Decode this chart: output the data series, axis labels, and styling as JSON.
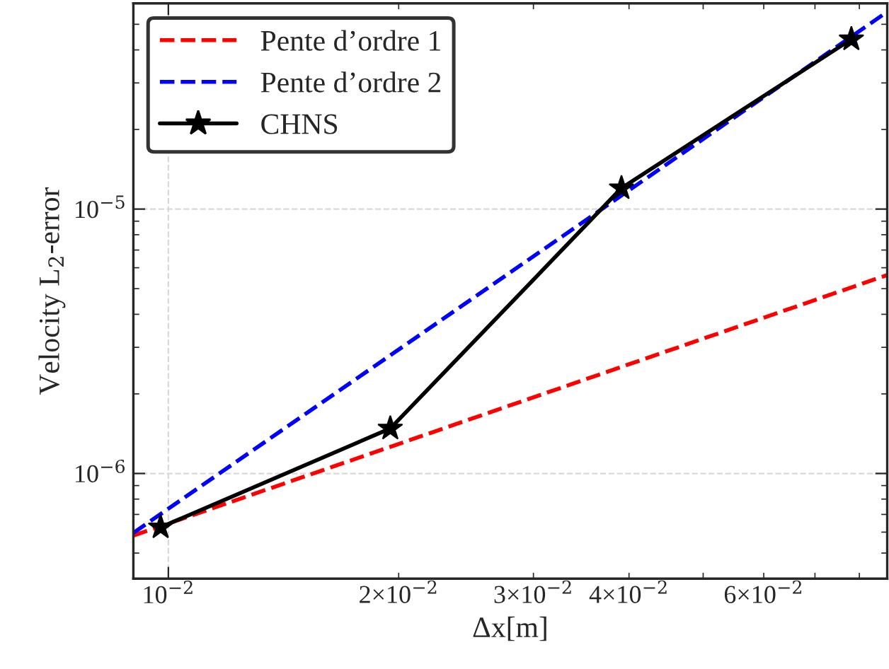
{
  "chart_data": {
    "type": "line",
    "xlabel": "Δx[m]",
    "ylabel": "Velocity L$_{2}$-error",
    "log": "xy",
    "grid": true,
    "legend": "top left",
    "xlim": [
      0.009,
      0.087
    ],
    "ylim": [
      4e-07,
      6e-05
    ],
    "xticks": [
      {
        "value": 0.01,
        "label": "10$^{−2}$"
      },
      {
        "value": 0.02,
        "label": "2×10$^{−2}$"
      },
      {
        "value": 0.03,
        "label": "3×10$^{−2}$"
      },
      {
        "value": 0.04,
        "label": "4×10$^{−2}$"
      },
      {
        "value": 0.05,
        "label": null
      },
      {
        "value": 0.06,
        "label": "6×10$^{−2}$"
      },
      {
        "value": 0.07,
        "label": null
      },
      {
        "value": 0.08,
        "label": null
      }
    ],
    "yticks": [
      {
        "value": 1e-06,
        "label": "10$^{−6}$"
      },
      {
        "value": 1e-05,
        "label": "10$^{−5}$"
      }
    ],
    "series": [
      {
        "name": "Pente d’ordre 1",
        "color": "#ff0000",
        "line_style": "dashed",
        "marker": "none",
        "x": [
          0.009,
          0.087
        ],
        "values": [
          5.82e-07,
          5.63e-06
        ]
      },
      {
        "name": "Pente d’ordre 2",
        "color": "#0000ff",
        "line_style": "dashed",
        "marker": "none",
        "x": [
          0.009,
          0.087
        ],
        "values": [
          5.96e-07,
          5.57e-05
        ]
      },
      {
        "name": "CHNS",
        "color": "#000000",
        "line_style": "solid",
        "marker": "star",
        "x": [
          0.00977,
          0.0195,
          0.0391,
          0.0781
        ],
        "values": [
          6.26e-07,
          1.48e-06,
          1.2e-05,
          4.39e-05
        ]
      }
    ]
  }
}
